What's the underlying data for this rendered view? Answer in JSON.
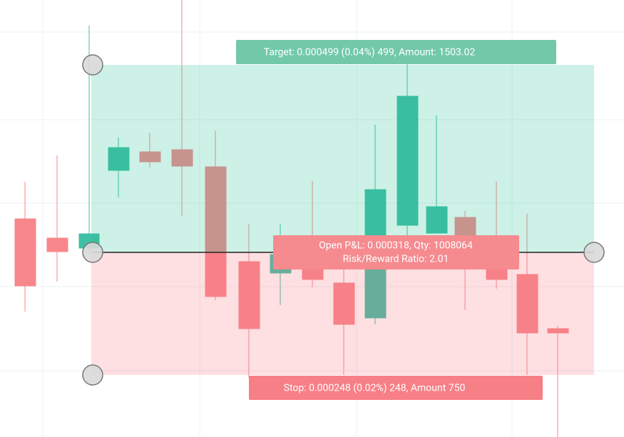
{
  "position_tool": {
    "target_label": "Target: 0.000499 (0.04%) 499, Amount: 1503.02",
    "pnl_label": "Open P&L: 0.000318, Qty: 1008064",
    "ratio_label": "Risk/Reward Ratio: 2.01",
    "stop_label": "Stop: 0.000248 (0.02%) 248, Amount 750"
  }
}
